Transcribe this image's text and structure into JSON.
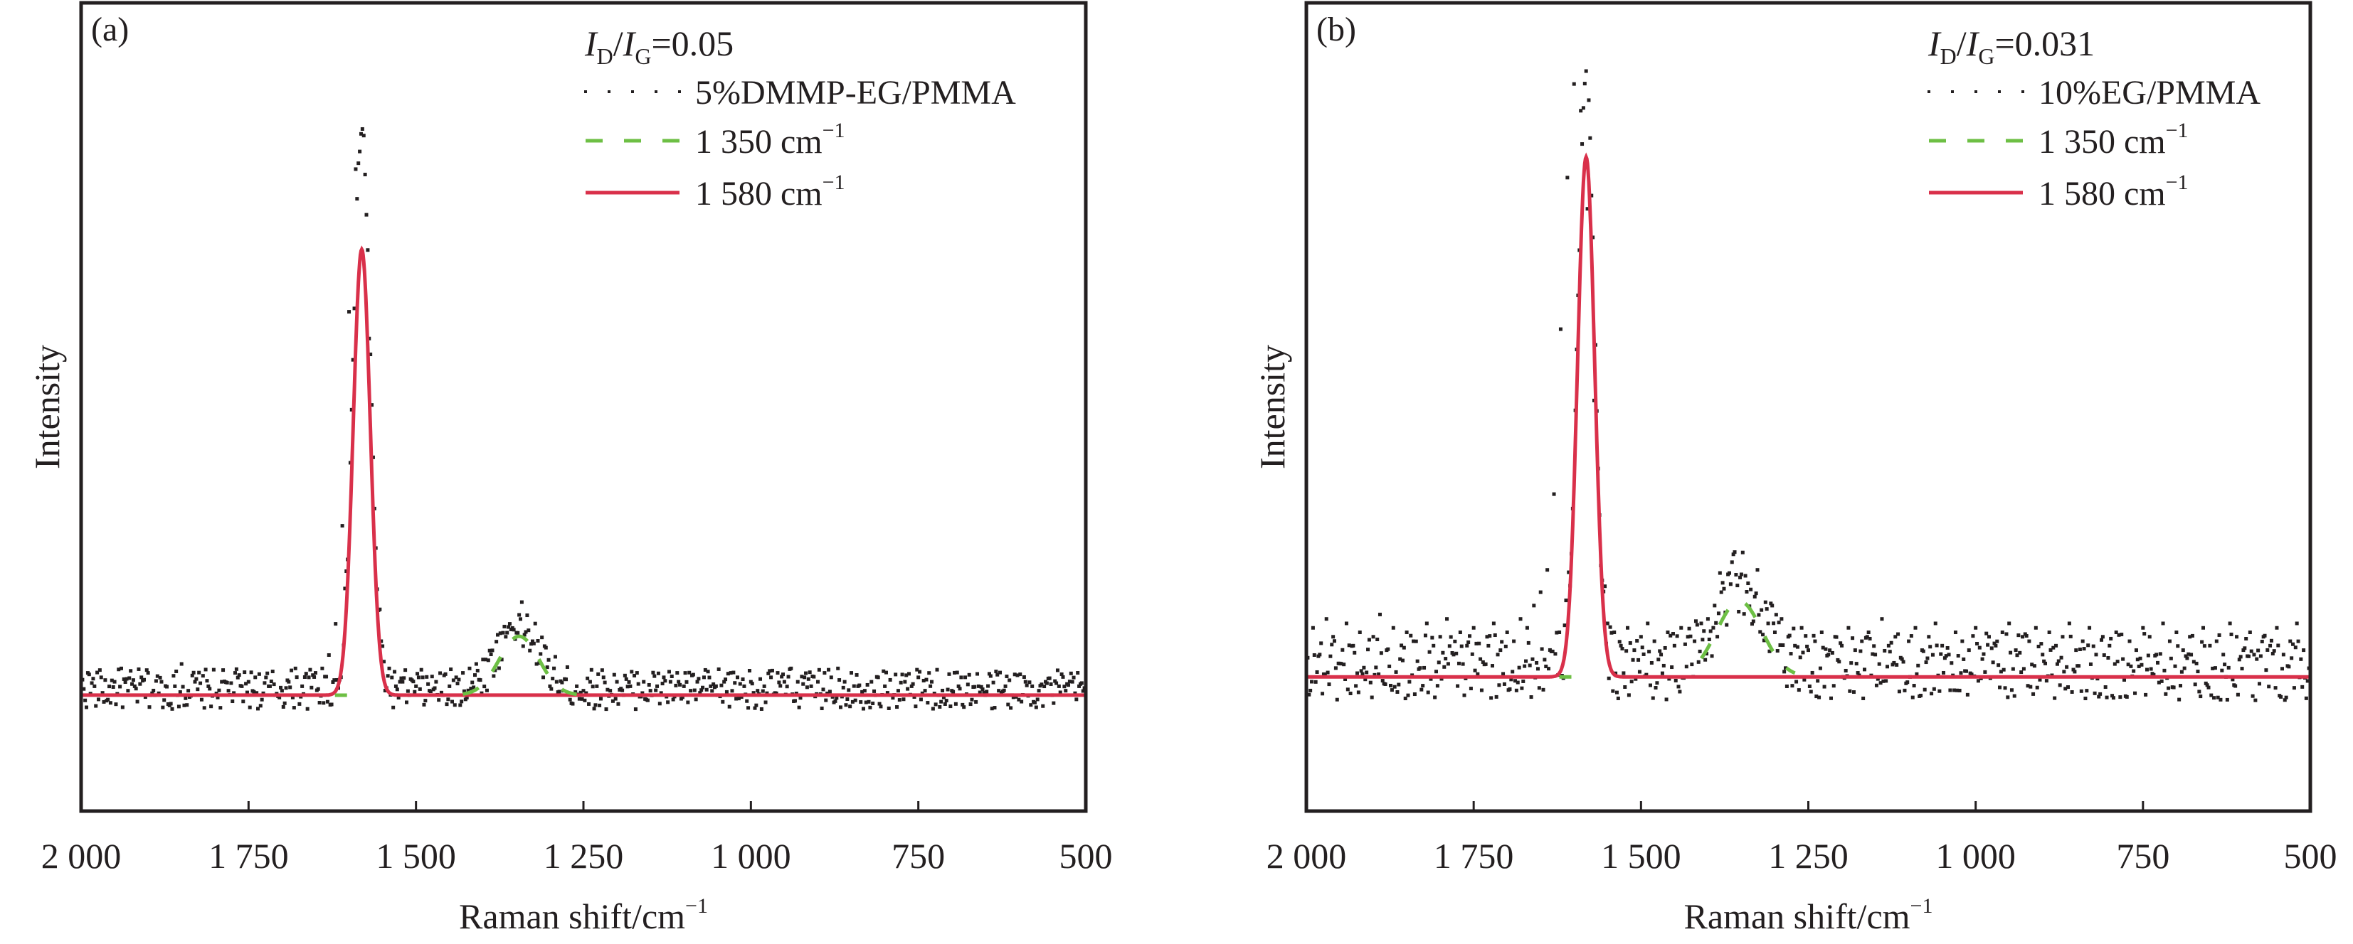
{
  "figure": {
    "panels": [
      "a",
      "b"
    ]
  },
  "chart_data": [
    {
      "type": "scatter",
      "panel_label": "(a)",
      "title": "",
      "xlabel": "Raman shift/cm",
      "xlabel_sup": "−1",
      "ylabel": "Intensity",
      "xlim": [
        2000,
        500
      ],
      "ylim": [
        -0.26,
        1.553
      ],
      "x_ticks": [
        2000,
        1750,
        1500,
        1250,
        1000,
        750,
        500
      ],
      "x_tick_labels": [
        "2 000",
        "1 750",
        "1 500",
        "1 250",
        "1 000",
        "750",
        "500"
      ],
      "grid": false,
      "legend_position": "top-right",
      "annotation": {
        "I": "I",
        "D": "D",
        "G": "G",
        "value": "=0.05"
      },
      "legend": [
        {
          "label": "5%DMMP-EG/PMMA",
          "style": "dotted",
          "color": "#231f20"
        },
        {
          "label": "1 350 cm",
          "sup": "−1",
          "style": "dashed",
          "color": "#6dbf44"
        },
        {
          "label": "1 580 cm",
          "sup": "−1",
          "style": "solid",
          "color": "#d9304a"
        }
      ],
      "baseline": 0.0,
      "fits": [
        {
          "name": "1 350 cm−1",
          "center": 1346,
          "height": 0.132,
          "fwhm": 70,
          "color": "#6dbf44",
          "range": [
            1430,
            1260
          ]
        },
        {
          "name": "1 580 cm−1",
          "center": 1581,
          "height": 1.0,
          "fwhm": 30,
          "color": "#d9304a",
          "range": [
            2000,
            500
          ]
        }
      ],
      "experimental": {
        "peak_max": 1.27,
        "x": [
          2000,
          1990,
          1980,
          1970,
          1960,
          1950,
          1940,
          1930,
          1920,
          1910,
          1900,
          1890,
          1880,
          1870,
          1860,
          1850,
          1840,
          1830,
          1820,
          1810,
          1800,
          1790,
          1780,
          1770,
          1760,
          1750,
          1740,
          1730,
          1720,
          1710,
          1700,
          1690,
          1680,
          1670,
          1660,
          1650,
          1640,
          1630,
          1620,
          1610,
          1600,
          1590,
          1580,
          1570,
          1560,
          1550,
          1540,
          1530,
          1520,
          1510,
          1500,
          1490,
          1480,
          1470,
          1460,
          1450,
          1440,
          1430,
          1420,
          1410,
          1400,
          1390,
          1380,
          1370,
          1360,
          1350,
          1340,
          1330,
          1320,
          1310,
          1300,
          1290,
          1280,
          1270,
          1260,
          1250,
          1240,
          1230,
          1220,
          1210,
          1200,
          1190,
          1180,
          1170,
          1160,
          1150,
          1140,
          1130,
          1120,
          1110,
          1100,
          1090,
          1080,
          1070,
          1060,
          1050,
          1040,
          1030,
          1020,
          1010,
          1000,
          990,
          980,
          970,
          960,
          950,
          940,
          930,
          920,
          910,
          900,
          890,
          880,
          870,
          860,
          850,
          840,
          830,
          820,
          810,
          800,
          790,
          780,
          770,
          760,
          750,
          740,
          730,
          720,
          710,
          700,
          690,
          680,
          670,
          660,
          650,
          640,
          630,
          620,
          610,
          600,
          590,
          580,
          570,
          560,
          550,
          540,
          530,
          520,
          510,
          500
        ],
        "y": [
          0.03,
          0.05,
          0.02,
          0.04,
          -0.01,
          0.03,
          0.06,
          0.01,
          0.02,
          0.04,
          0.05,
          0.0,
          0.03,
          -0.02,
          0.02,
          0.07,
          0.01,
          0.03,
          -0.01,
          0.02,
          0.0,
          0.03,
          0.01,
          0.05,
          0.02,
          0.03,
          0.04,
          -0.01,
          0.02,
          0.0,
          0.01,
          0.03,
          0.06,
          0.02,
          0.04,
          0.05,
          0.06,
          0.09,
          0.16,
          0.38,
          0.86,
          1.18,
          1.27,
          0.8,
          0.33,
          0.11,
          0.06,
          0.02,
          0.03,
          0.0,
          0.02,
          0.04,
          0.01,
          0.03,
          0.0,
          0.02,
          0.04,
          0.05,
          0.06,
          0.07,
          0.08,
          0.1,
          0.12,
          0.14,
          0.16,
          0.14,
          0.11,
          0.1,
          0.07,
          0.04,
          0.02,
          0.03,
          0.01,
          -0.01,
          0.02,
          0.01,
          0.03,
          0.02,
          0.04,
          0.01,
          0.03,
          0.0,
          0.02,
          0.05,
          0.03,
          0.01,
          0.02,
          0.04,
          0.03,
          0.05,
          0.02,
          0.01,
          0.03,
          0.04,
          0.02,
          0.0,
          0.03,
          0.05,
          0.04,
          0.02,
          0.03,
          0.01,
          0.02,
          0.04,
          0.05,
          0.03,
          0.06,
          0.03,
          0.04,
          0.02,
          0.03,
          0.05,
          0.04,
          0.06,
          0.03,
          0.05,
          0.02,
          0.01,
          0.03,
          0.04,
          0.02,
          0.0,
          0.01,
          0.03,
          0.02,
          0.04,
          0.01,
          0.03,
          0.0,
          -0.02,
          0.01,
          0.02,
          0.04,
          -0.01,
          0.02,
          0.0,
          -0.03,
          0.01,
          0.02,
          0.0,
          -0.01,
          0.03,
          0.02,
          0.01,
          0.03,
          0.0,
          0.02,
          0.01,
          0.03,
          0.02,
          0.01
        ]
      }
    },
    {
      "type": "scatter",
      "panel_label": "(b)",
      "title": "",
      "xlabel": "Raman shift/cm",
      "xlabel_sup": "−1",
      "ylabel": "Intensity",
      "xlim": [
        2000,
        500
      ],
      "ylim": [
        -0.26,
        1.553
      ],
      "x_ticks": [
        2000,
        1750,
        1500,
        1250,
        1000,
        750,
        500
      ],
      "x_tick_labels": [
        "2 000",
        "1 750",
        "1 500",
        "1 250",
        "1 000",
        "750",
        "500"
      ],
      "grid": false,
      "legend_position": "top-right",
      "annotation": {
        "I": "I",
        "D": "D",
        "G": "G",
        "value": "=0.031"
      },
      "legend": [
        {
          "label": "10%EG/PMMA",
          "style": "dotted",
          "color": "#231f20"
        },
        {
          "label": "1 350 cm",
          "sup": "−1",
          "style": "dashed",
          "color": "#6dbf44"
        },
        {
          "label": "1 580 cm",
          "sup": "−1",
          "style": "solid",
          "color": "#d9304a"
        }
      ],
      "baseline": 0.041,
      "fits": [
        {
          "name": "1 350 cm−1",
          "center": 1353,
          "height": 0.17,
          "fwhm": 80,
          "color": "#6dbf44",
          "range": [
            1410,
            1270
          ]
        },
        {
          "name": "1 580 cm−1",
          "center": 1582,
          "height": 1.166,
          "fwhm": 30,
          "color": "#d9304a",
          "range": [
            2000,
            500
          ]
        }
      ],
      "experimental": {
        "peak_max": 1.33,
        "x": [
          2000,
          1990,
          1980,
          1970,
          1960,
          1950,
          1940,
          1930,
          1920,
          1910,
          1900,
          1890,
          1880,
          1870,
          1860,
          1850,
          1840,
          1830,
          1820,
          1810,
          1800,
          1790,
          1780,
          1770,
          1760,
          1750,
          1740,
          1730,
          1720,
          1710,
          1700,
          1690,
          1680,
          1670,
          1660,
          1650,
          1640,
          1630,
          1620,
          1610,
          1600,
          1590,
          1580,
          1570,
          1560,
          1550,
          1540,
          1530,
          1520,
          1510,
          1500,
          1490,
          1480,
          1470,
          1460,
          1450,
          1440,
          1430,
          1420,
          1410,
          1400,
          1390,
          1380,
          1370,
          1360,
          1350,
          1340,
          1330,
          1320,
          1310,
          1300,
          1290,
          1280,
          1270,
          1260,
          1250,
          1240,
          1230,
          1220,
          1210,
          1200,
          1190,
          1180,
          1170,
          1160,
          1150,
          1140,
          1130,
          1120,
          1110,
          1100,
          1090,
          1080,
          1070,
          1060,
          1050,
          1040,
          1030,
          1020,
          1010,
          1000,
          990,
          980,
          970,
          960,
          950,
          940,
          930,
          920,
          910,
          900,
          890,
          880,
          870,
          860,
          850,
          840,
          830,
          820,
          810,
          800,
          790,
          780,
          770,
          760,
          750,
          740,
          730,
          720,
          710,
          700,
          690,
          680,
          670,
          660,
          650,
          640,
          630,
          620,
          610,
          600,
          590,
          580,
          570,
          560,
          550,
          540,
          530,
          520,
          510,
          500
        ],
        "y": [
          0.08,
          0.11,
          0.05,
          0.13,
          0.09,
          0.03,
          0.12,
          0.07,
          0.1,
          0.01,
          0.09,
          0.14,
          0.06,
          0.11,
          0.04,
          0.1,
          0.08,
          0.02,
          0.12,
          0.07,
          0.09,
          0.13,
          0.05,
          0.1,
          0.07,
          0.11,
          0.04,
          0.09,
          0.12,
          0.06,
          0.1,
          0.08,
          0.13,
          0.11,
          0.16,
          0.19,
          0.24,
          0.41,
          0.78,
          1.12,
          1.33,
          1.27,
          1.05,
          0.62,
          0.25,
          0.12,
          0.1,
          0.07,
          0.11,
          0.06,
          0.09,
          0.12,
          0.08,
          0.05,
          0.1,
          0.07,
          0.11,
          0.09,
          0.08,
          0.12,
          0.13,
          0.16,
          0.19,
          0.23,
          0.28,
          0.23,
          0.21,
          0.18,
          0.15,
          0.12,
          0.1,
          0.13,
          0.09,
          0.07,
          0.11,
          0.06,
          0.08,
          0.1,
          0.05,
          0.09,
          0.07,
          0.11,
          0.06,
          0.08,
          0.1,
          0.05,
          0.13,
          0.07,
          0.09,
          0.04,
          0.08,
          0.11,
          0.06,
          0.09,
          0.12,
          0.07,
          0.05,
          0.1,
          0.08,
          0.06,
          0.11,
          0.04,
          0.09,
          0.07,
          0.1,
          0.12,
          0.06,
          0.09,
          0.08,
          0.11,
          0.05,
          0.1,
          0.07,
          0.09,
          0.12,
          0.06,
          0.08,
          0.11,
          0.05,
          0.09,
          0.07,
          0.1,
          0.04,
          0.08,
          0.06,
          0.11,
          0.09,
          0.05,
          0.12,
          0.08,
          0.1,
          0.06,
          0.09,
          0.03,
          0.11,
          0.07,
          0.08,
          0.05,
          0.12,
          0.09,
          0.06,
          0.1,
          0.04,
          0.09,
          0.07,
          0.11,
          0.05,
          0.08,
          0.12,
          0.06,
          0.02
        ]
      }
    }
  ]
}
